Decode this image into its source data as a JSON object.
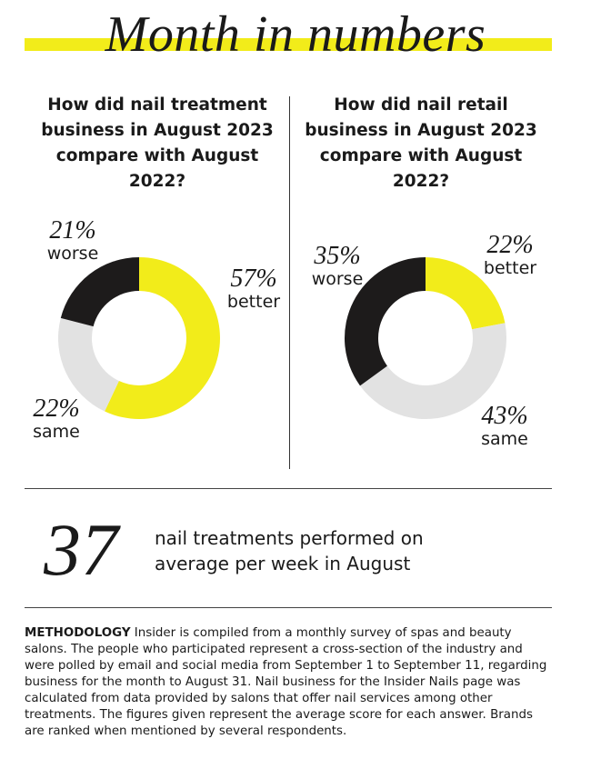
{
  "header": {
    "title": "Month in numbers",
    "accent_color": "#f2ec1a"
  },
  "colors": {
    "better": "#f2ec1a",
    "same": "#e2e2e2",
    "worse": "#1d1b1b"
  },
  "chart_data": [
    {
      "type": "pie",
      "title": "How did nail treatment business in August 2023 compare with August 2022?",
      "categories": [
        "better",
        "same",
        "worse"
      ],
      "values": [
        57,
        22,
        21
      ],
      "labels": [
        "57%",
        "22%",
        "21%"
      ]
    },
    {
      "type": "pie",
      "title": "How did nail retail business in August 2023 compare with August 2022?",
      "categories": [
        "better",
        "same",
        "worse"
      ],
      "values": [
        22,
        43,
        35
      ],
      "labels": [
        "22%",
        "43%",
        "35%"
      ]
    }
  ],
  "stat": {
    "number": "37",
    "line1": "nail treatments performed on",
    "line2": "average per week in August"
  },
  "methodology": {
    "label": "METHODOLOGY",
    "text": "Insider is compiled from a monthly survey of spas and beauty salons. The people who participated represent a cross-section of the industry and were polled by email and social media from September 1 to September 11, regarding business for the month to August 31. Nail business for the Insider Nails page was calculated from data provided by salons that offer nail services among other treatments. The figures given represent the average score for each answer. Brands are ranked when mentioned by several respondents."
  }
}
